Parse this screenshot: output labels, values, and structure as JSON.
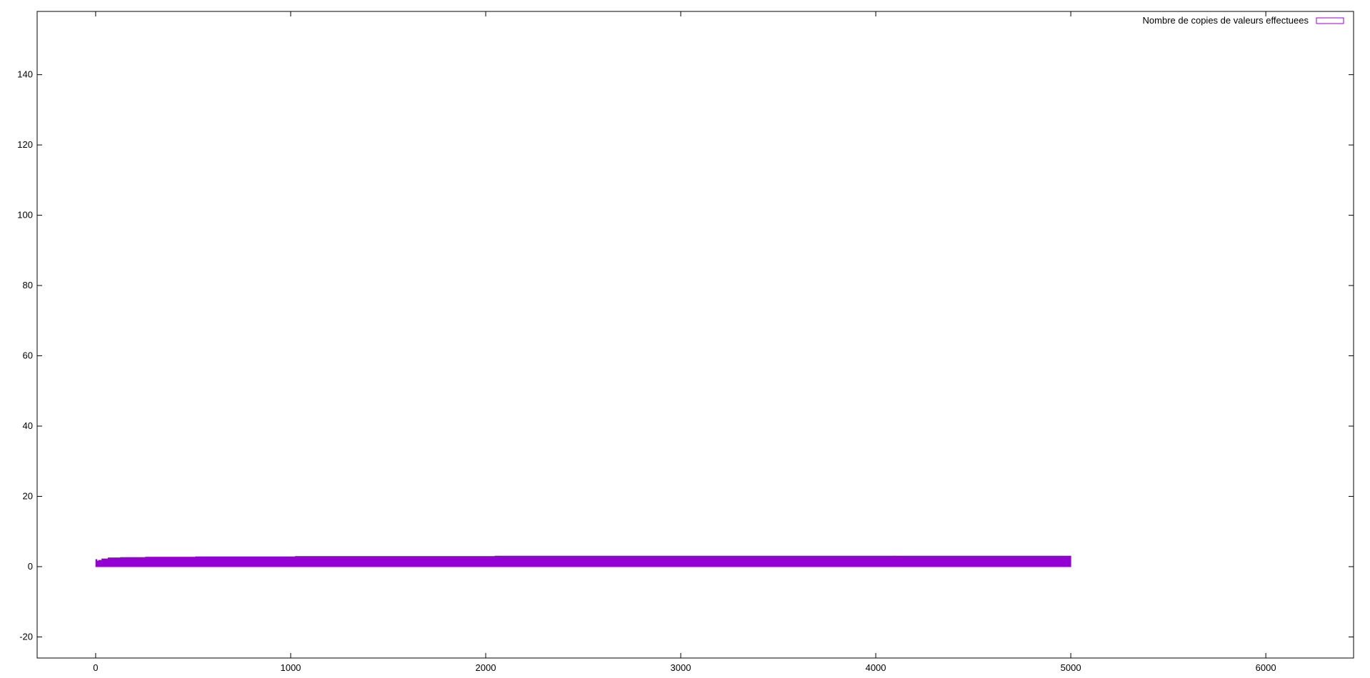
{
  "chart_data": {
    "type": "area",
    "title": "",
    "xlabel": "",
    "ylabel": "",
    "xlim": [
      -300,
      6450
    ],
    "ylim": [
      -26,
      158
    ],
    "xticks": [
      0,
      1000,
      2000,
      3000,
      4000,
      5000,
      6000
    ],
    "xtick_labels": [
      "0",
      "1000",
      "2000",
      "3000",
      "4000",
      "5000",
      "6000"
    ],
    "yticks": [
      -20,
      0,
      20,
      40,
      60,
      80,
      100,
      120,
      140
    ],
    "ytick_labels": [
      "-20",
      "0",
      "20",
      "40",
      "60",
      "80",
      "100",
      "120",
      "140"
    ],
    "grid": false,
    "legend_position": "top-right",
    "series": [
      {
        "name": "Nombre de copies de valeurs effectuees",
        "color": "#9400d3",
        "x": [
          1,
          2,
          3,
          4,
          8,
          16,
          32,
          64,
          128,
          256,
          512,
          1024,
          2048,
          4096,
          5000
        ],
        "values": [
          2,
          1,
          2,
          1.3,
          1.6,
          1.8,
          2.2,
          2.5,
          2.6,
          2.7,
          2.8,
          2.9,
          3.0,
          3.0,
          2.4
        ]
      }
    ]
  }
}
